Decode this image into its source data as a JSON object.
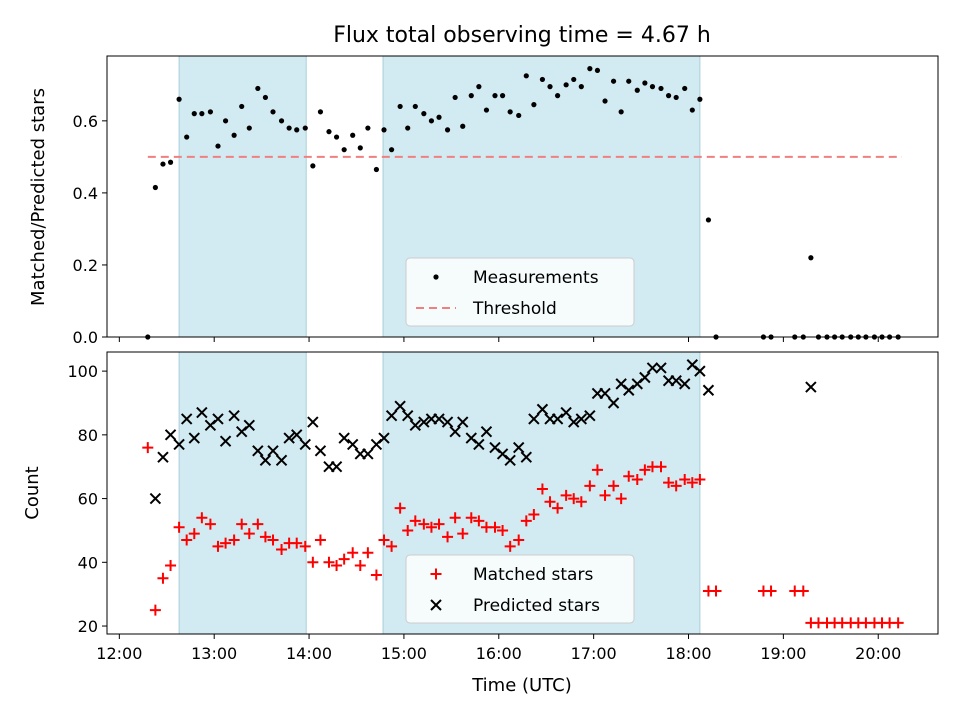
{
  "chart_data": [
    {
      "type": "scatter",
      "title": "Flux total observing time = 4.67 h",
      "ylabel": "Matched/Predicted stars",
      "xlabel": "",
      "xlim": [
        11.87,
        20.63
      ],
      "ylim": [
        0,
        0.78
      ],
      "yticks": [
        0,
        0.2,
        0.4,
        0.6
      ],
      "ytick_labels": [
        "0.0",
        "0.2",
        "0.4",
        "0.6"
      ],
      "shaded_spans": [
        [
          12.63,
          13.97
        ],
        [
          14.78,
          18.12
        ]
      ],
      "shade_color": "#add8e6",
      "legend_position": "lower center",
      "series": [
        {
          "name": "Measurements",
          "marker": "dot",
          "color": "#000000",
          "points": [
            [
              12.3,
              0.0
            ],
            [
              12.38,
              0.415
            ],
            [
              12.46,
              0.48
            ],
            [
              12.54,
              0.485
            ],
            [
              12.63,
              0.66
            ],
            [
              12.71,
              0.555
            ],
            [
              12.79,
              0.62
            ],
            [
              12.87,
              0.62
            ],
            [
              12.96,
              0.625
            ],
            [
              13.04,
              0.53
            ],
            [
              13.12,
              0.6
            ],
            [
              13.21,
              0.56
            ],
            [
              13.29,
              0.64
            ],
            [
              13.37,
              0.58
            ],
            [
              13.46,
              0.69
            ],
            [
              13.54,
              0.665
            ],
            [
              13.62,
              0.625
            ],
            [
              13.71,
              0.6
            ],
            [
              13.79,
              0.58
            ],
            [
              13.87,
              0.575
            ],
            [
              13.96,
              0.58
            ],
            [
              14.04,
              0.475
            ],
            [
              14.12,
              0.625
            ],
            [
              14.21,
              0.57
            ],
            [
              14.29,
              0.555
            ],
            [
              14.37,
              0.52
            ],
            [
              14.46,
              0.56
            ],
            [
              14.54,
              0.525
            ],
            [
              14.62,
              0.58
            ],
            [
              14.71,
              0.465
            ],
            [
              14.79,
              0.575
            ],
            [
              14.87,
              0.52
            ],
            [
              14.96,
              0.64
            ],
            [
              15.04,
              0.58
            ],
            [
              15.12,
              0.64
            ],
            [
              15.21,
              0.62
            ],
            [
              15.29,
              0.6
            ],
            [
              15.37,
              0.61
            ],
            [
              15.46,
              0.575
            ],
            [
              15.54,
              0.665
            ],
            [
              15.62,
              0.585
            ],
            [
              15.71,
              0.67
            ],
            [
              15.79,
              0.695
            ],
            [
              15.87,
              0.63
            ],
            [
              15.96,
              0.67
            ],
            [
              16.04,
              0.67
            ],
            [
              16.12,
              0.625
            ],
            [
              16.21,
              0.615
            ],
            [
              16.29,
              0.725
            ],
            [
              16.37,
              0.645
            ],
            [
              16.46,
              0.715
            ],
            [
              16.54,
              0.695
            ],
            [
              16.62,
              0.67
            ],
            [
              16.71,
              0.7
            ],
            [
              16.79,
              0.715
            ],
            [
              16.87,
              0.695
            ],
            [
              16.96,
              0.745
            ],
            [
              17.04,
              0.74
            ],
            [
              17.12,
              0.655
            ],
            [
              17.21,
              0.71
            ],
            [
              17.29,
              0.625
            ],
            [
              17.37,
              0.71
            ],
            [
              17.46,
              0.685
            ],
            [
              17.54,
              0.705
            ],
            [
              17.62,
              0.695
            ],
            [
              17.71,
              0.69
            ],
            [
              17.79,
              0.67
            ],
            [
              17.87,
              0.665
            ],
            [
              17.96,
              0.69
            ],
            [
              18.04,
              0.63
            ],
            [
              18.12,
              0.66
            ],
            [
              18.21,
              0.325
            ],
            [
              18.29,
              0.0
            ],
            [
              18.79,
              0.0
            ],
            [
              18.87,
              0.0
            ],
            [
              19.12,
              0.0
            ],
            [
              19.21,
              0.0
            ],
            [
              19.29,
              0.22
            ],
            [
              19.37,
              0.0
            ],
            [
              19.46,
              0.0
            ],
            [
              19.54,
              0.0
            ],
            [
              19.62,
              0.0
            ],
            [
              19.71,
              0.0
            ],
            [
              19.79,
              0.0
            ],
            [
              19.87,
              0.0
            ],
            [
              19.96,
              0.0
            ],
            [
              20.04,
              0.0
            ],
            [
              20.12,
              0.0
            ],
            [
              20.21,
              0.0
            ]
          ]
        },
        {
          "name": "Threshold",
          "marker": "dashed-line",
          "color": "#f08080",
          "points": [
            [
              12.3,
              0.5
            ],
            [
              20.25,
              0.5
            ]
          ]
        }
      ]
    },
    {
      "type": "scatter",
      "title": "",
      "ylabel": "Count",
      "xlabel": "Time (UTC)",
      "xlim": [
        11.87,
        20.63
      ],
      "ylim": [
        17.5,
        106
      ],
      "yticks": [
        20,
        40,
        60,
        80,
        100
      ],
      "ytick_labels": [
        "20",
        "40",
        "60",
        "80",
        "100"
      ],
      "xticks": [
        12,
        13,
        14,
        15,
        16,
        17,
        18,
        19,
        20
      ],
      "xtick_labels": [
        "12:00",
        "13:00",
        "14:00",
        "15:00",
        "16:00",
        "17:00",
        "18:00",
        "19:00",
        "20:00"
      ],
      "shaded_spans": [
        [
          12.63,
          13.97
        ],
        [
          14.78,
          18.12
        ]
      ],
      "shade_color": "#add8e6",
      "legend_position": "lower center",
      "series": [
        {
          "name": "Matched stars",
          "marker": "plus",
          "color": "#ff0000",
          "points": [
            [
              12.3,
              76
            ],
            [
              12.38,
              25
            ],
            [
              12.46,
              35
            ],
            [
              12.54,
              39
            ],
            [
              12.63,
              51
            ],
            [
              12.71,
              47
            ],
            [
              12.79,
              49
            ],
            [
              12.87,
              54
            ],
            [
              12.96,
              52
            ],
            [
              13.04,
              45
            ],
            [
              13.12,
              46
            ],
            [
              13.21,
              47
            ],
            [
              13.29,
              52
            ],
            [
              13.37,
              49
            ],
            [
              13.46,
              52
            ],
            [
              13.54,
              48
            ],
            [
              13.62,
              47
            ],
            [
              13.71,
              44
            ],
            [
              13.79,
              46
            ],
            [
              13.87,
              46
            ],
            [
              13.96,
              45
            ],
            [
              14.04,
              40
            ],
            [
              14.12,
              47
            ],
            [
              14.21,
              40
            ],
            [
              14.29,
              39
            ],
            [
              14.37,
              41
            ],
            [
              14.46,
              43
            ],
            [
              14.54,
              39
            ],
            [
              14.62,
              43
            ],
            [
              14.71,
              36
            ],
            [
              14.79,
              47
            ],
            [
              14.87,
              45
            ],
            [
              14.96,
              57
            ],
            [
              15.04,
              50
            ],
            [
              15.12,
              53
            ],
            [
              15.21,
              52
            ],
            [
              15.29,
              51
            ],
            [
              15.37,
              52
            ],
            [
              15.46,
              48
            ],
            [
              15.54,
              54
            ],
            [
              15.62,
              49
            ],
            [
              15.71,
              54
            ],
            [
              15.79,
              53
            ],
            [
              15.87,
              51
            ],
            [
              15.96,
              51
            ],
            [
              16.04,
              50
            ],
            [
              16.12,
              45
            ],
            [
              16.21,
              47
            ],
            [
              16.29,
              53
            ],
            [
              16.37,
              55
            ],
            [
              16.46,
              63
            ],
            [
              16.54,
              59
            ],
            [
              16.62,
              57
            ],
            [
              16.71,
              61
            ],
            [
              16.79,
              60
            ],
            [
              16.87,
              59
            ],
            [
              16.96,
              64
            ],
            [
              17.04,
              69
            ],
            [
              17.12,
              61
            ],
            [
              17.21,
              64
            ],
            [
              17.29,
              60
            ],
            [
              17.37,
              67
            ],
            [
              17.46,
              66
            ],
            [
              17.54,
              69
            ],
            [
              17.62,
              70
            ],
            [
              17.71,
              70
            ],
            [
              17.79,
              65
            ],
            [
              17.87,
              64
            ],
            [
              17.96,
              66
            ],
            [
              18.04,
              65
            ],
            [
              18.12,
              66
            ],
            [
              18.21,
              31
            ],
            [
              18.29,
              31
            ],
            [
              18.79,
              31
            ],
            [
              18.87,
              31
            ],
            [
              19.12,
              31
            ],
            [
              19.21,
              31
            ],
            [
              19.29,
              21
            ],
            [
              19.37,
              21
            ],
            [
              19.46,
              21
            ],
            [
              19.54,
              21
            ],
            [
              19.62,
              21
            ],
            [
              19.71,
              21
            ],
            [
              19.79,
              21
            ],
            [
              19.87,
              21
            ],
            [
              19.96,
              21
            ],
            [
              20.04,
              21
            ],
            [
              20.12,
              21
            ],
            [
              20.21,
              21
            ]
          ]
        },
        {
          "name": "Predicted stars",
          "marker": "x",
          "color": "#000000",
          "points": [
            [
              12.38,
              60
            ],
            [
              12.46,
              73
            ],
            [
              12.54,
              80
            ],
            [
              12.63,
              77
            ],
            [
              12.71,
              85
            ],
            [
              12.79,
              79
            ],
            [
              12.87,
              87
            ],
            [
              12.96,
              83
            ],
            [
              13.04,
              85
            ],
            [
              13.12,
              78
            ],
            [
              13.21,
              86
            ],
            [
              13.29,
              81
            ],
            [
              13.37,
              83
            ],
            [
              13.46,
              75
            ],
            [
              13.54,
              72
            ],
            [
              13.62,
              75
            ],
            [
              13.71,
              72
            ],
            [
              13.79,
              79
            ],
            [
              13.87,
              80
            ],
            [
              13.96,
              77
            ],
            [
              14.04,
              84
            ],
            [
              14.12,
              75
            ],
            [
              14.21,
              70
            ],
            [
              14.29,
              70
            ],
            [
              14.37,
              79
            ],
            [
              14.46,
              77
            ],
            [
              14.54,
              74
            ],
            [
              14.62,
              74
            ],
            [
              14.71,
              77
            ],
            [
              14.79,
              79
            ],
            [
              14.87,
              86
            ],
            [
              14.96,
              89
            ],
            [
              15.04,
              86
            ],
            [
              15.12,
              83
            ],
            [
              15.21,
              84
            ],
            [
              15.29,
              85
            ],
            [
              15.37,
              85
            ],
            [
              15.46,
              84
            ],
            [
              15.54,
              81
            ],
            [
              15.62,
              84
            ],
            [
              15.71,
              79
            ],
            [
              15.79,
              77
            ],
            [
              15.87,
              81
            ],
            [
              15.96,
              76
            ],
            [
              16.04,
              74
            ],
            [
              16.12,
              72
            ],
            [
              16.21,
              76
            ],
            [
              16.29,
              73
            ],
            [
              16.37,
              85
            ],
            [
              16.46,
              88
            ],
            [
              16.54,
              85
            ],
            [
              16.62,
              85
            ],
            [
              16.71,
              87
            ],
            [
              16.79,
              84
            ],
            [
              16.87,
              85
            ],
            [
              16.96,
              86
            ],
            [
              17.04,
              93
            ],
            [
              17.12,
              93
            ],
            [
              17.21,
              90
            ],
            [
              17.29,
              96
            ],
            [
              17.37,
              94
            ],
            [
              17.46,
              96
            ],
            [
              17.54,
              98
            ],
            [
              17.62,
              101
            ],
            [
              17.71,
              101
            ],
            [
              17.79,
              97
            ],
            [
              17.87,
              97
            ],
            [
              17.96,
              96
            ],
            [
              18.04,
              102
            ],
            [
              18.12,
              100
            ],
            [
              18.21,
              94
            ],
            [
              19.29,
              95
            ]
          ]
        }
      ]
    }
  ]
}
